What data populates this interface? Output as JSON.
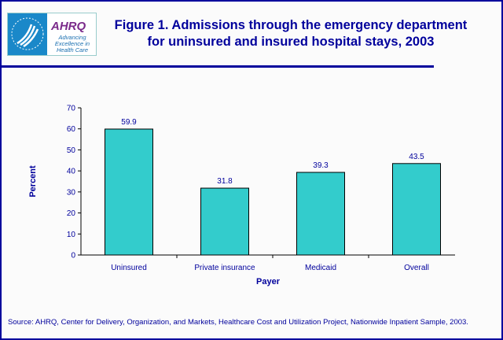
{
  "logo": {
    "text": "AHRQ",
    "tagline": "Advancing Excellence in Health Care"
  },
  "title": "Figure 1. Admissions through the emergency department for uninsured and insured hospital stays, 2003",
  "source": "Source: AHRQ, Center for Delivery, Organization, and Markets, Healthcare Cost and Utilization Project, Nationwide Inpatient Sample, 2003.",
  "colors": {
    "bar": "#33cccc",
    "text": "#00009c",
    "frame": "#00009c"
  },
  "chart_data": {
    "type": "bar",
    "categories": [
      "Uninsured",
      "Private insurance",
      "Medicaid",
      "Overall"
    ],
    "values": [
      59.9,
      31.8,
      39.3,
      43.5
    ],
    "data_labels": [
      "59.9",
      "31.8",
      "39.3",
      "43.5"
    ],
    "xlabel": "Payer",
    "ylabel": "Percent",
    "ylim": [
      0,
      70
    ],
    "yticks": [
      0,
      10,
      20,
      30,
      40,
      50,
      60,
      70
    ],
    "grid": false,
    "legend": "none"
  }
}
